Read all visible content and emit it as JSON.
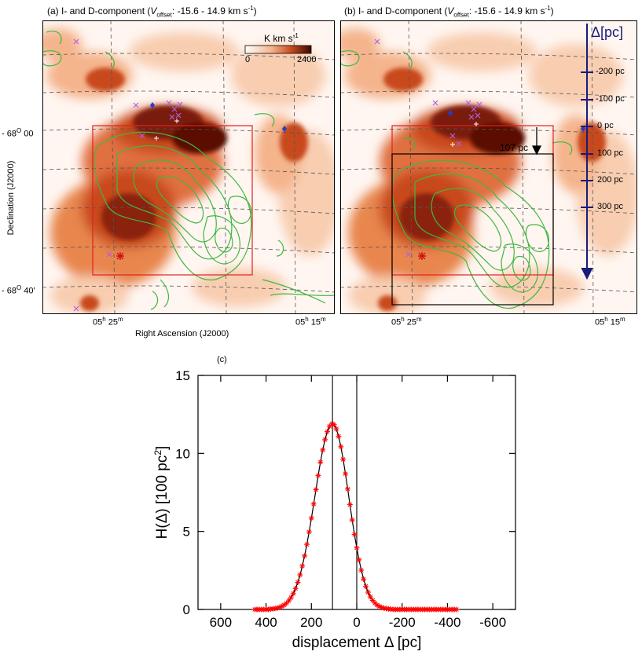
{
  "panel_a": {
    "title_prefix": "(a) I- and D-component (",
    "title_var": "V",
    "title_sub": "offset",
    "title_suffix": ":  -15.6 - 14.9 km s",
    "title_sup": "-1",
    "title_close": ")",
    "colorbar_label": "K km s",
    "colorbar_sup": "-1",
    "colorbar_min": "0",
    "colorbar_max": "2400",
    "dec_tick_top": "- 68",
    "dec_tick_top_min": " 00",
    "dec_tick_bottom": "- 68",
    "dec_tick_bottom_min": " 40'",
    "deg_sup": "O",
    "ra_tick_left": "05",
    "ra_tick_left_unit": "h",
    "ra_tick_left_min": " 25",
    "ra_tick_right": "05",
    "ra_tick_right_unit": "h",
    "ra_tick_right_min": " 15",
    "min_sup": "m",
    "xlabel": "Right Ascension (J2000)",
    "ylabel": "Declination (J2000)"
  },
  "panel_b": {
    "title_prefix": "(b) I- and D-component (",
    "title_var": "V",
    "title_sub": "offset",
    "title_suffix": ":  -15.6 - 14.9 km s",
    "title_sup": "-1",
    "title_close": ")",
    "shift_label": "107 pc",
    "delta_header": "Δ[pc]",
    "delta_ticks": [
      "-200 pc",
      "-100 pc",
      "0 pc",
      "100 pc",
      "200 pc",
      "300 pc"
    ],
    "ra_tick_left": "05",
    "ra_tick_left_unit": "h",
    "ra_tick_left_min": " 25",
    "ra_tick_right": "05",
    "ra_tick_right_unit": "h",
    "ra_tick_right_min": " 15",
    "min_sup": "m"
  },
  "panel_c": {
    "label": "(c)"
  },
  "colors": {
    "map_dark": "#5a0e06",
    "map_mid": "#c84a1c",
    "map_light": "#f4b48c",
    "contour": "#3fb83f",
    "box_red": "#e02020",
    "box_black": "#000000",
    "arrow_navy": "#1a1a7a",
    "cross": "#b060e0",
    "diamond": "#1f3fd0",
    "curve_points": "#ff0000"
  },
  "chart_data": {
    "type": "line",
    "title": "",
    "xlabel": "displacement Δ [pc]",
    "ylabel_pre": "H(Δ) [100 pc",
    "ylabel_sup": "2",
    "ylabel_post": "]",
    "xlim": [
      700,
      -700
    ],
    "ylim": [
      0,
      15
    ],
    "xticks": [
      600,
      400,
      200,
      0,
      -200,
      -400,
      -600
    ],
    "xtick_labels": [
      "600",
      "400",
      "200",
      "0",
      "-200",
      "-400",
      "-600"
    ],
    "yticks": [
      0,
      5,
      10,
      15
    ],
    "ytick_labels": [
      "0",
      "5",
      "10",
      "15"
    ],
    "vlines": [
      107,
      0
    ],
    "peak_x": 107,
    "peak_y": 11.9,
    "x_range": [
      450,
      -440
    ],
    "x_step": 10,
    "gauss_sigma_left": 78,
    "gauss_sigma_right": 72,
    "series": [
      {
        "name": "H(Δ)",
        "marker": "asterisk",
        "color": "#ff0000"
      }
    ]
  }
}
